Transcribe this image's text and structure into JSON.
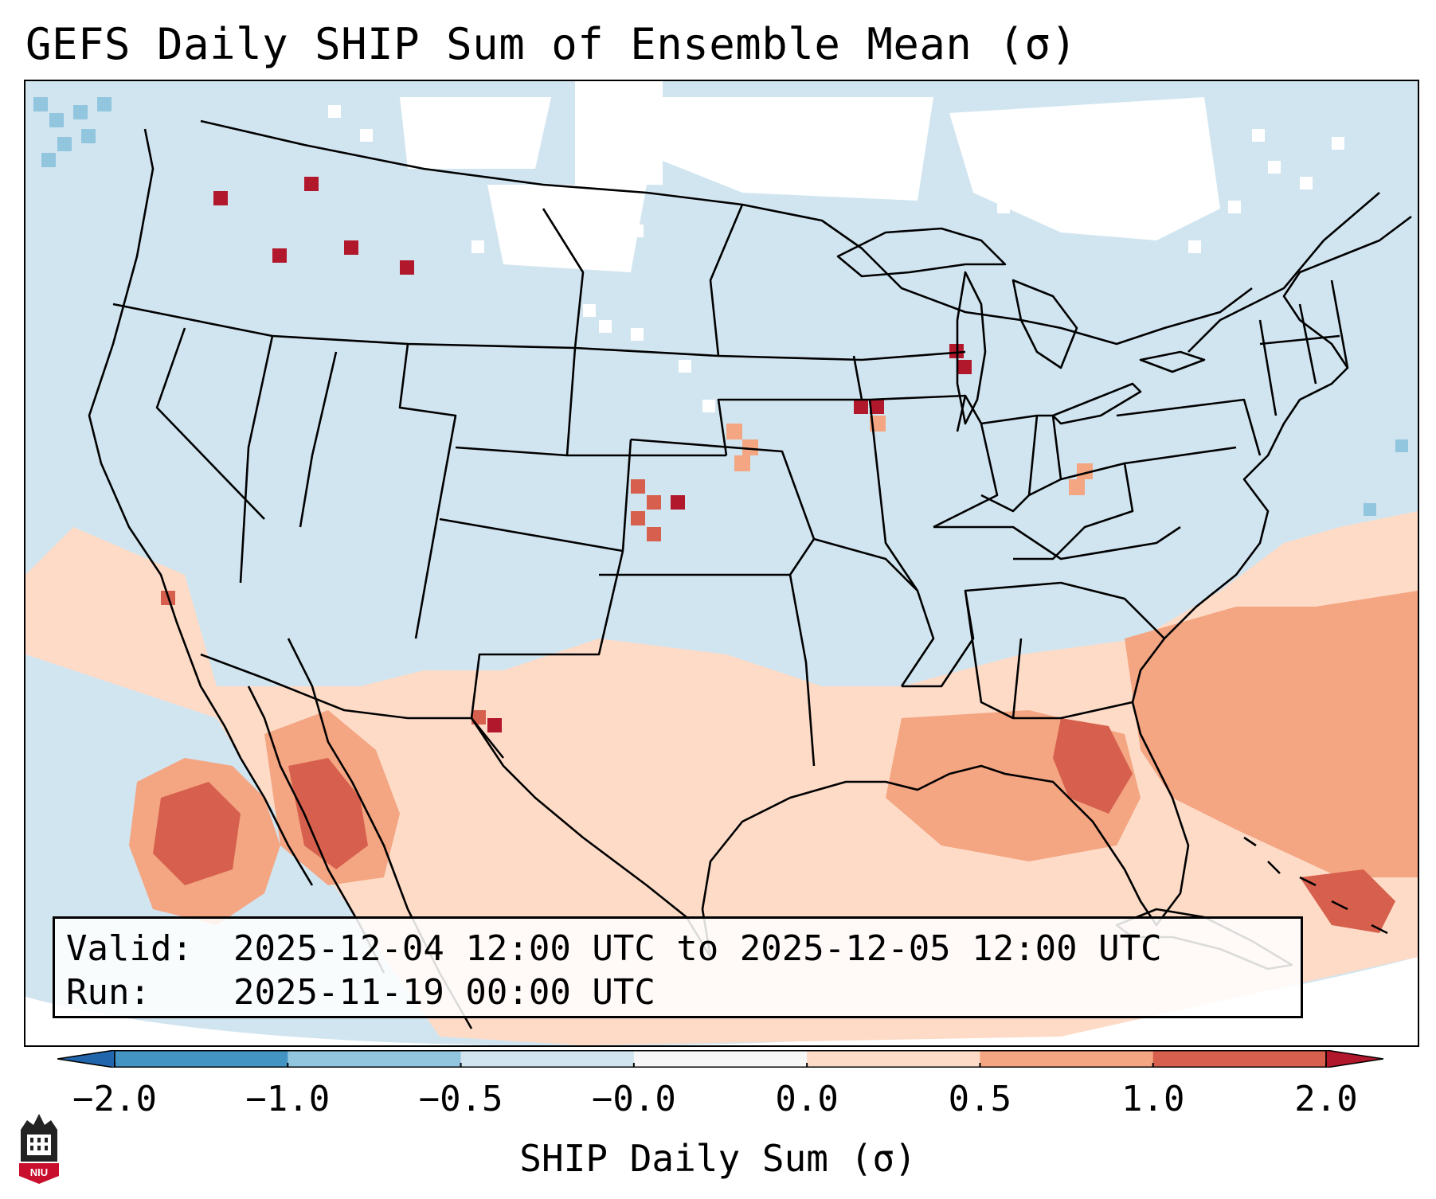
{
  "title": "GEFS Daily SHIP Sum of Ensemble Mean (σ)",
  "info": {
    "valid_label": "Valid:",
    "valid_value": "2025-12-04 12:00 UTC to 2025-12-05 12:00 UTC",
    "run_label": "Run:",
    "run_value": "2025-11-19 00:00 UTC"
  },
  "colorbar": {
    "label": "SHIP Daily Sum (σ)",
    "ticks": [
      "−2.0",
      "−1.0",
      "−0.5",
      "−0.0",
      "0.0",
      "0.5",
      "1.0",
      "2.0"
    ],
    "bins": [
      {
        "range": "-2.0 to -1.0",
        "color": "#4393c3"
      },
      {
        "range": "-1.0 to -0.5",
        "color": "#92c5de"
      },
      {
        "range": "-0.5 to -0.0",
        "color": "#d1e5f0"
      },
      {
        "range": "-0.0 to 0.0",
        "color": "#f7f7f7"
      },
      {
        "range": "0.0 to 0.5",
        "color": "#fddbc7"
      },
      {
        "range": "0.5 to 1.0",
        "color": "#f4a582"
      },
      {
        "range": "1.0 to 2.0",
        "color": "#d6604d"
      }
    ],
    "extend_low_color": "#2166ac",
    "extend_high_color": "#b2182b"
  },
  "map": {
    "projection_region": "CONUS Lambert Conformal",
    "background_color": "#d1e5f0",
    "no_signal_color": "#ffffff",
    "outline_color": "#000000"
  },
  "logo": {
    "text": "NIU",
    "icon": "niu-logo-icon"
  }
}
